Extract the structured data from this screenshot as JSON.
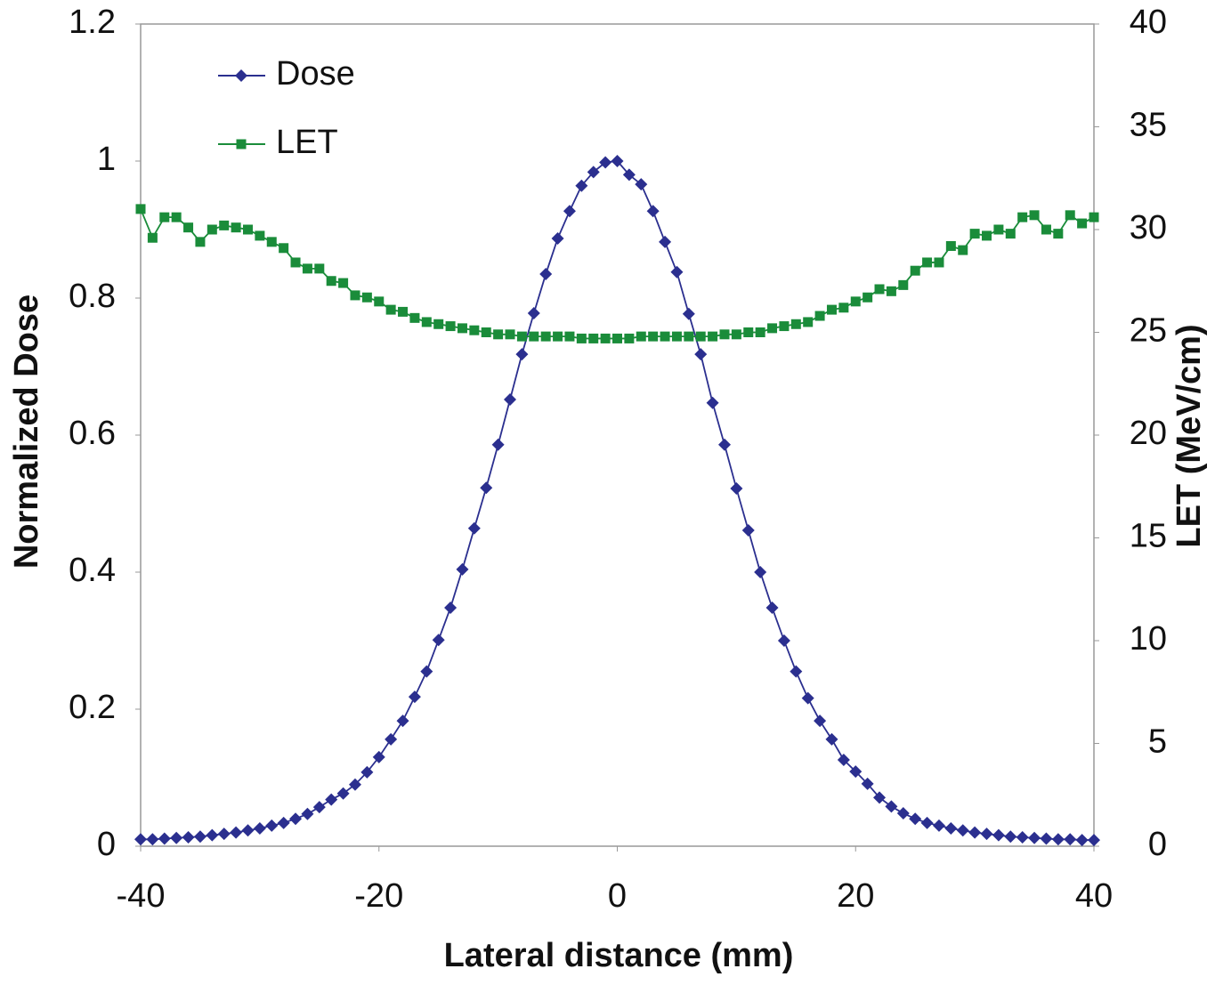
{
  "chart_data": {
    "type": "line",
    "x_label": "Lateral distance (mm)",
    "y_label": "Normalized Dose",
    "y2_label": "LET (MeV/cm)",
    "x": [
      -40,
      -39,
      -38,
      -37,
      -36,
      -35,
      -34,
      -33,
      -32,
      -31,
      -30,
      -29,
      -28,
      -27,
      -26,
      -25,
      -24,
      -23,
      -22,
      -21,
      -20,
      -19,
      -18,
      -17,
      -16,
      -15,
      -14,
      -13,
      -12,
      -11,
      -10,
      -9,
      -8,
      -7,
      -6,
      -5,
      -4,
      -3,
      -2,
      -1,
      0,
      1,
      2,
      3,
      4,
      5,
      6,
      7,
      8,
      9,
      10,
      11,
      12,
      13,
      14,
      15,
      16,
      17,
      18,
      19,
      20,
      21,
      22,
      23,
      24,
      25,
      26,
      27,
      28,
      29,
      30,
      31,
      32,
      33,
      34,
      35,
      36,
      37,
      38,
      39,
      40
    ],
    "series": [
      {
        "name": "Dose",
        "color": "#2b2f8f",
        "marker": "diamond",
        "values": [
          0.01,
          0.01,
          0.011,
          0.012,
          0.013,
          0.014,
          0.016,
          0.018,
          0.02,
          0.023,
          0.026,
          0.03,
          0.034,
          0.04,
          0.047,
          0.057,
          0.068,
          0.077,
          0.09,
          0.108,
          0.13,
          0.156,
          0.183,
          0.218,
          0.255,
          0.301,
          0.348,
          0.404,
          0.464,
          0.523,
          0.586,
          0.652,
          0.718,
          0.778,
          0.835,
          0.887,
          0.927,
          0.964,
          0.984,
          0.998,
          1.0,
          0.98,
          0.966,
          0.927,
          0.882,
          0.838,
          0.777,
          0.718,
          0.647,
          0.586,
          0.522,
          0.461,
          0.4,
          0.348,
          0.3,
          0.255,
          0.216,
          0.183,
          0.156,
          0.126,
          0.109,
          0.091,
          0.071,
          0.058,
          0.048,
          0.04,
          0.034,
          0.03,
          0.026,
          0.023,
          0.02,
          0.018,
          0.016,
          0.014,
          0.013,
          0.012,
          0.011,
          0.01,
          0.01,
          0.009,
          0.009
        ]
      },
      {
        "name": "LET",
        "color": "#1a8c3a",
        "marker": "square",
        "axis": "y2",
        "values": [
          31.0,
          29.6,
          30.6,
          30.6,
          30.1,
          29.4,
          30.0,
          30.2,
          30.1,
          30.0,
          29.7,
          29.4,
          29.1,
          28.4,
          28.1,
          28.1,
          27.5,
          27.4,
          26.8,
          26.7,
          26.5,
          26.1,
          26.0,
          25.7,
          25.5,
          25.4,
          25.3,
          25.2,
          25.1,
          25.0,
          24.9,
          24.9,
          24.8,
          24.8,
          24.8,
          24.8,
          24.8,
          24.7,
          24.7,
          24.7,
          24.7,
          24.7,
          24.8,
          24.8,
          24.8,
          24.8,
          24.8,
          24.8,
          24.8,
          24.9,
          24.9,
          25.0,
          25.0,
          25.2,
          25.3,
          25.4,
          25.5,
          25.8,
          26.1,
          26.2,
          26.5,
          26.7,
          27.1,
          27.0,
          27.3,
          28.0,
          28.4,
          28.4,
          29.2,
          29.0,
          29.8,
          29.7,
          30.0,
          29.8,
          30.6,
          30.7,
          30.0,
          29.8,
          30.7,
          30.3,
          30.6
        ]
      }
    ],
    "xlim": [
      -40,
      40
    ],
    "xticks": [
      -40,
      -20,
      0,
      20,
      40
    ],
    "ylim": [
      0,
      1.2
    ],
    "yticks": [
      0,
      0.2,
      0.4,
      0.6,
      0.8,
      1,
      1.2
    ],
    "y2lim": [
      0,
      40
    ],
    "y2ticks": [
      0,
      5,
      10,
      15,
      20,
      25,
      30,
      35,
      40
    ],
    "legend": "upper left"
  }
}
